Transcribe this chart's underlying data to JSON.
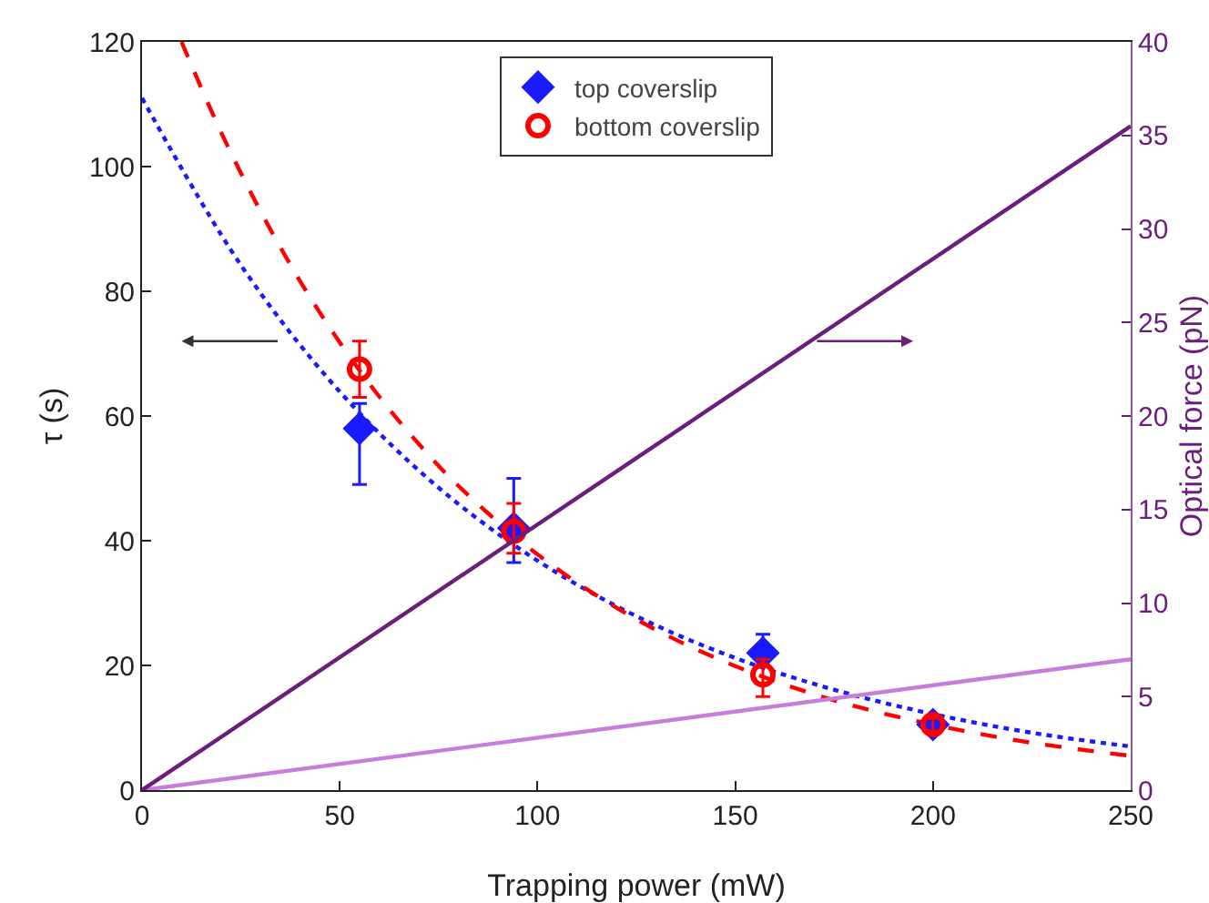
{
  "chart_data": {
    "type": "scatter",
    "xlabel": "Trapping power (mW)",
    "ylabel": "τ (s)",
    "y2label": "Optical force (pN)",
    "xlim": [
      0,
      250
    ],
    "xticks": [
      0,
      50,
      100,
      150,
      200,
      250
    ],
    "ylim": [
      0,
      120
    ],
    "yticks": [
      0,
      20,
      40,
      60,
      80,
      100,
      120
    ],
    "y2lim": [
      0,
      40
    ],
    "y2ticks": [
      0,
      5,
      10,
      15,
      20,
      25,
      30,
      35,
      40
    ],
    "grid": false,
    "legend": "top",
    "series": [
      {
        "type": "line",
        "axis": "y2",
        "color": "#c77ddb",
        "line_style": "solid",
        "x": [
          0,
          250
        ],
        "values": [
          0,
          7
        ]
      },
      {
        "type": "line",
        "axis": "y2",
        "color": "#6a1f7a",
        "line_style": "solid",
        "x": [
          0,
          250
        ],
        "values": [
          0,
          35.5
        ]
      },
      {
        "type": "line",
        "color": "#1a1aff",
        "line_style": "dotted",
        "x": [
          0,
          25,
          50,
          75,
          100,
          125,
          150,
          175,
          200,
          225,
          250
        ],
        "values": [
          111,
          84.2,
          63.9,
          48.5,
          36.8,
          27.9,
          21.2,
          16.1,
          12.2,
          9.2,
          7.0
        ]
      },
      {
        "type": "line",
        "color": "#ff0000",
        "line_style": "dashed",
        "x": [
          10,
          20,
          30,
          40,
          50,
          60,
          70,
          80,
          100,
          125,
          150,
          175,
          200,
          225,
          250
        ],
        "values": [
          120,
          105.5,
          92.8,
          81.6,
          71.8,
          63.1,
          55.5,
          48.8,
          37.8,
          27.4,
          19.9,
          14.4,
          10.5,
          7.6,
          5.5
        ]
      },
      {
        "name": "top coverslip",
        "color": "#1a1aff",
        "marker": "diamond",
        "x": [
          55,
          94,
          157,
          200
        ],
        "values": [
          58,
          42,
          22,
          10.5
        ],
        "errors": [
          [
            49,
            62
          ],
          [
            36.5,
            50
          ],
          [
            20,
            25
          ],
          [
            9.5,
            11.5
          ]
        ]
      },
      {
        "name": "bottom coverslip",
        "color": "#ff0000",
        "marker": "circle",
        "x": [
          55,
          94,
          157,
          200
        ],
        "values": [
          67.5,
          41.5,
          18.5,
          10.5
        ],
        "errors": [
          [
            63,
            72
          ],
          [
            38,
            46
          ],
          [
            15,
            21
          ],
          [
            9.5,
            11.5
          ]
        ]
      }
    ]
  }
}
